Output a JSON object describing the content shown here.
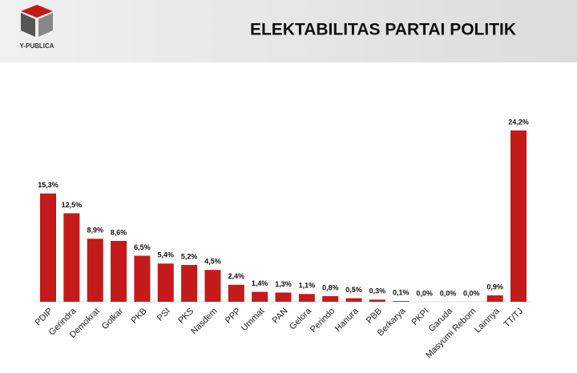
{
  "logo_text": "Y-PUBLICA",
  "chart_data": {
    "type": "bar",
    "title": "ELEKTABILITAS PARTAI POLITIK",
    "categories": [
      "PDIP",
      "Gerindra",
      "Demokrat",
      "Golkar",
      "PKB",
      "PSI",
      "PKS",
      "Nasdem",
      "PPP",
      "Ummat",
      "PAN",
      "Gelora",
      "Perindo",
      "Hanura",
      "PBB",
      "Berkarya",
      "PKPI",
      "Garuda",
      "Masyumi Reborn",
      "Lainnya",
      "TT/TJ"
    ],
    "values": [
      15.3,
      12.5,
      8.9,
      8.6,
      6.5,
      5.4,
      5.2,
      4.5,
      2.4,
      1.4,
      1.3,
      1.1,
      0.8,
      0.5,
      0.3,
      0.1,
      0.0,
      0.0,
      0.0,
      0.9,
      24.2
    ],
    "value_labels": [
      "15,3%",
      "12,5%",
      "8,9%",
      "8,6%",
      "6,5%",
      "5,4%",
      "5,2%",
      "4,5%",
      "2,4%",
      "1,4%",
      "1,3%",
      "1,1%",
      "0,8%",
      "0,5%",
      "0,3%",
      "0,1%",
      "0,0%",
      "0,0%",
      "0,0%",
      "0,9%",
      "24,2%"
    ],
    "color": "#c41a1a"
  }
}
